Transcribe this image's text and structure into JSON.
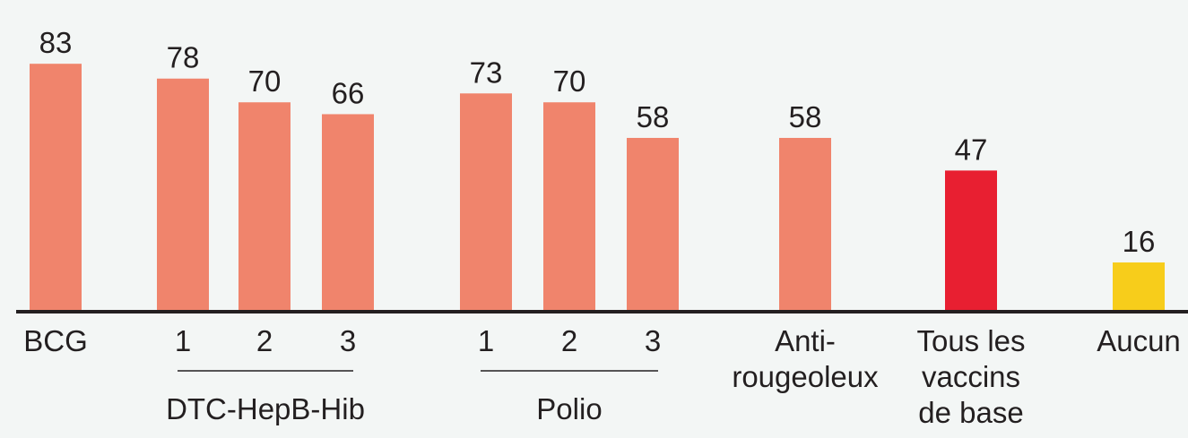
{
  "chart_data": {
    "type": "bar",
    "categories": [
      "BCG",
      "1",
      "2",
      "3",
      "1",
      "2",
      "3",
      "Anti-\nrougeoleux",
      "Tous les\nvaccins\nde base",
      "Aucun"
    ],
    "values": [
      83,
      78,
      70,
      66,
      73,
      70,
      58,
      58,
      47,
      16
    ],
    "bar_colors": [
      "#f0846c",
      "#f0846c",
      "#f0846c",
      "#f0846c",
      "#f0846c",
      "#f0846c",
      "#f0846c",
      "#f0846c",
      "#e81f31",
      "#f7cd1b"
    ],
    "groups": [
      {
        "label": "DTC-HepB-Hib",
        "members": [
          1,
          2,
          3
        ]
      },
      {
        "label": "Polio",
        "members": [
          4,
          5,
          6
        ]
      }
    ],
    "ylim": [
      0,
      100
    ],
    "grid": false,
    "colors": {
      "background": "#f3f6f5",
      "baseline": "#231f20",
      "text": "#231f20"
    }
  }
}
